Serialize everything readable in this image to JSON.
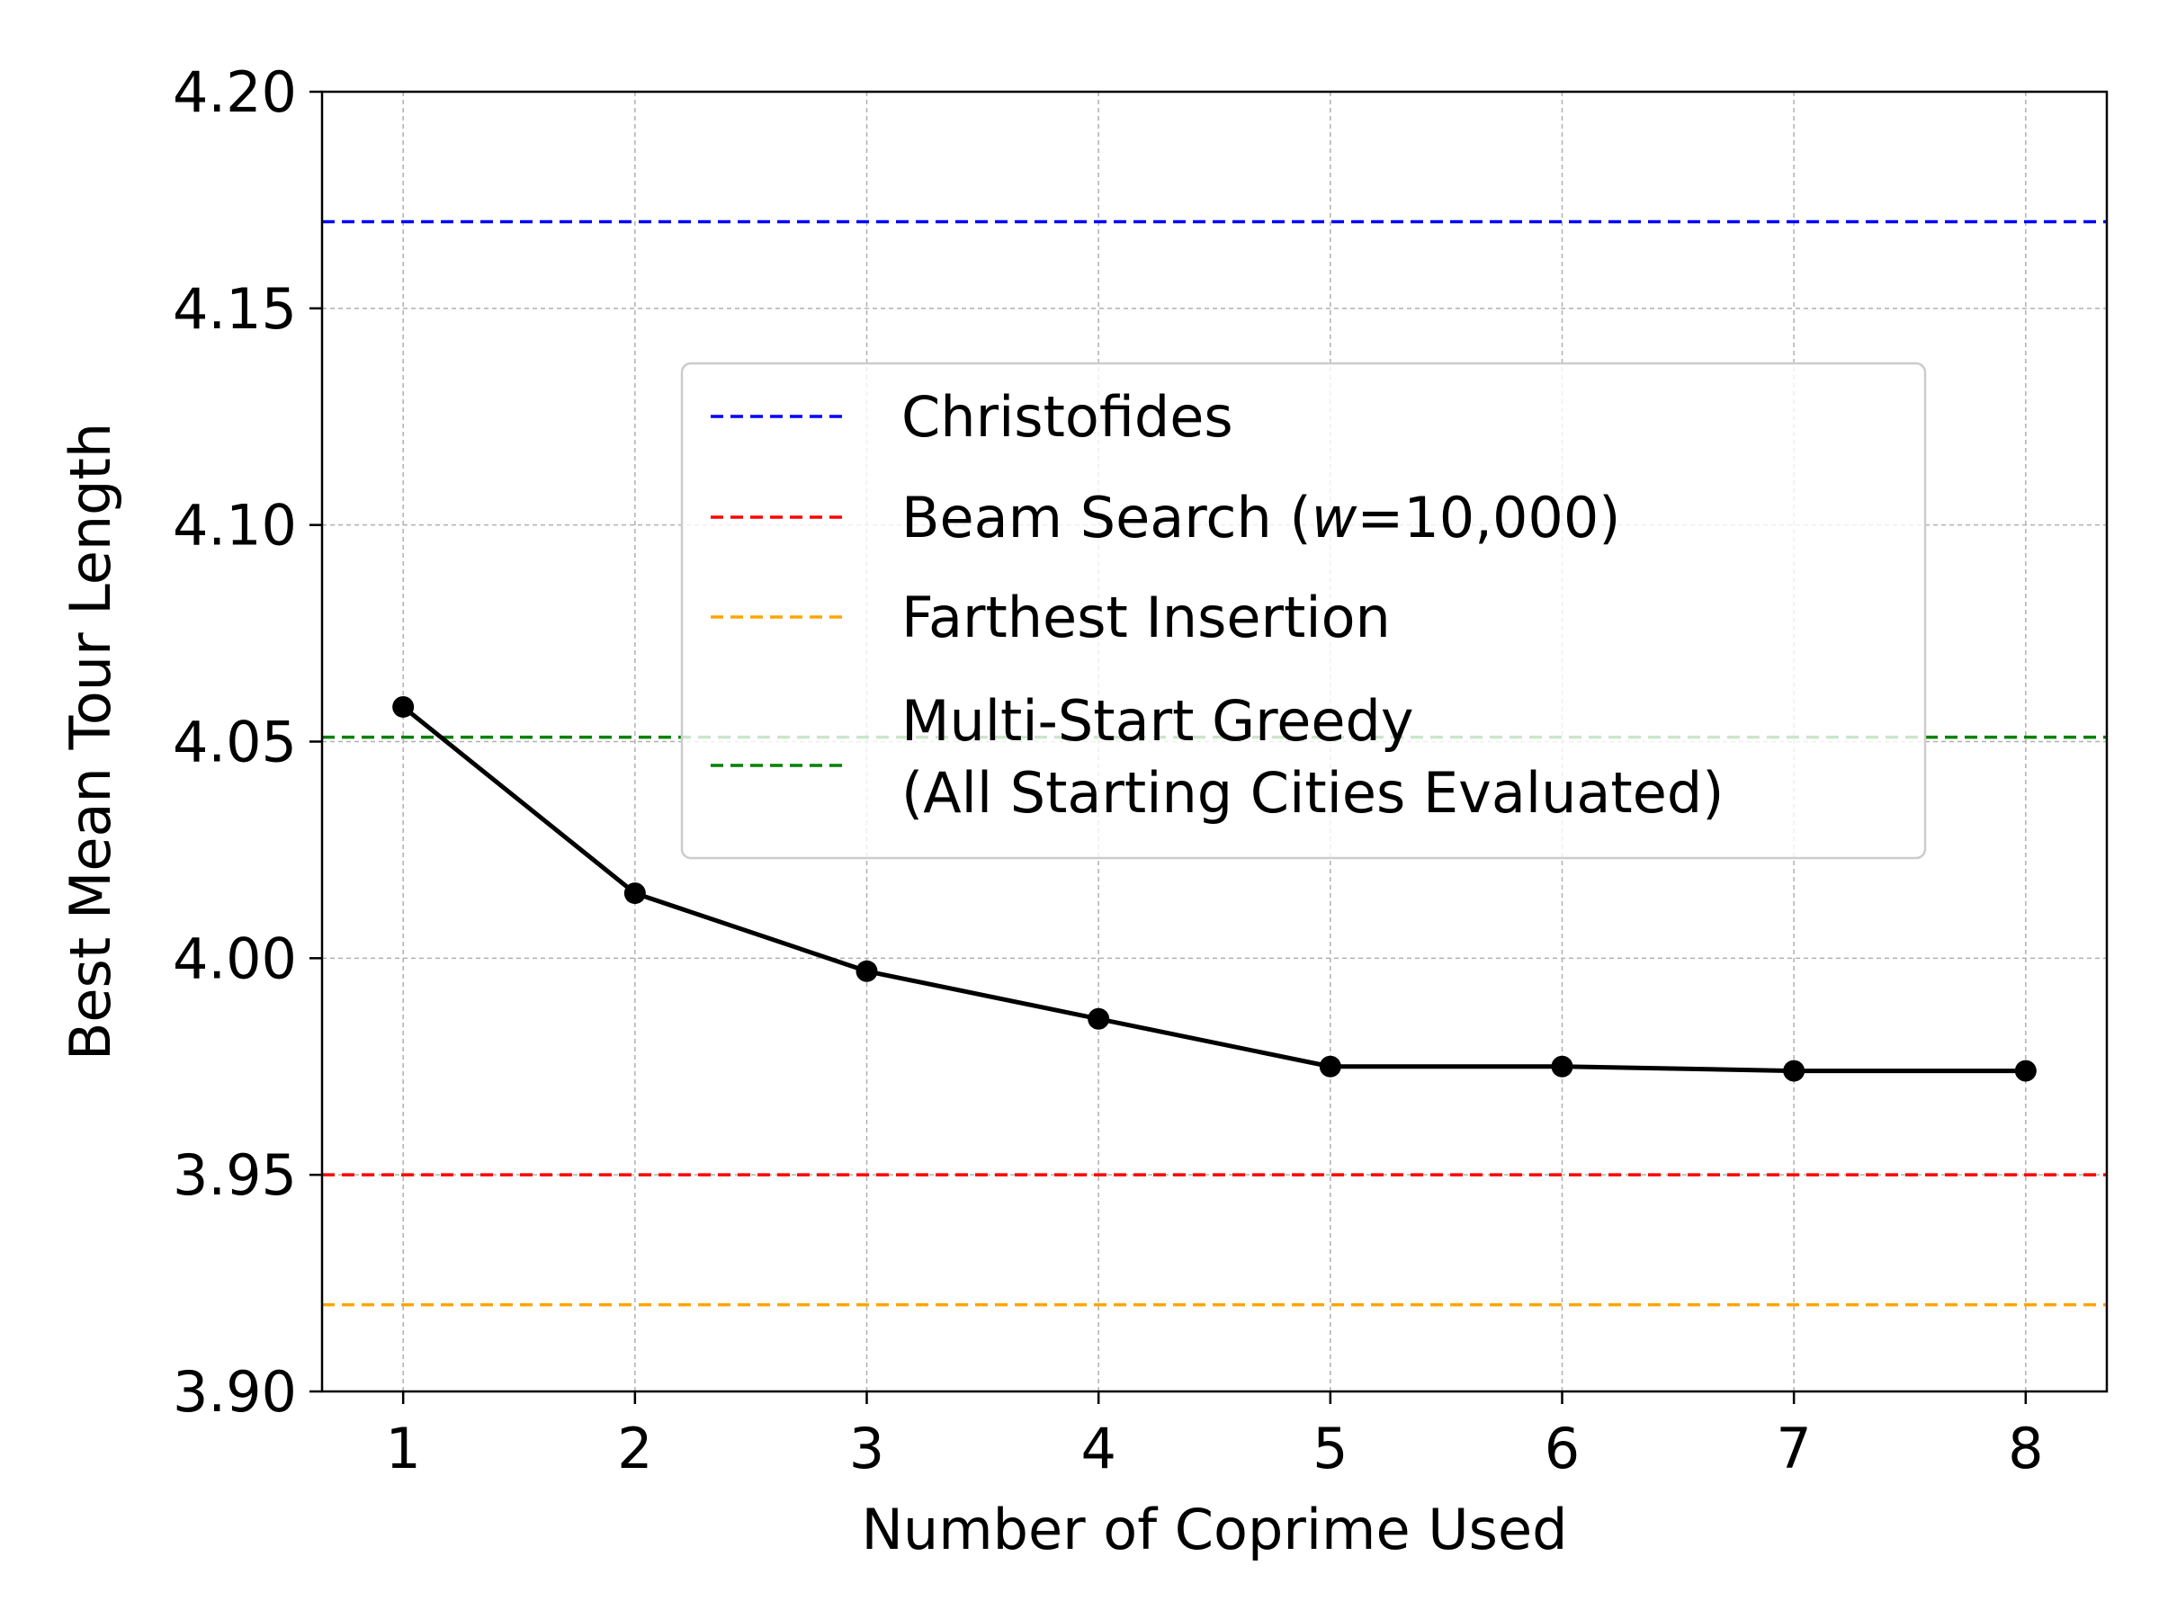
{
  "chart_data": {
    "type": "line",
    "xlabel": "Number of Coprime Used",
    "ylabel": "Best Mean Tour Length",
    "xlim": [
      0.65,
      8.35
    ],
    "ylim": [
      3.9,
      4.2
    ],
    "x_ticks": [
      1,
      2,
      3,
      4,
      5,
      6,
      7,
      8
    ],
    "y_ticks": [
      3.9,
      3.95,
      4.0,
      4.05,
      4.1,
      4.15,
      4.2
    ],
    "y_tick_labels": [
      "3.90",
      "3.95",
      "4.00",
      "4.05",
      "4.10",
      "4.15",
      "4.20"
    ],
    "grid": true,
    "legend_position": "center-right",
    "series": [
      {
        "x": [
          1,
          2,
          3,
          4,
          5,
          6,
          7,
          8
        ],
        "values": [
          4.058,
          4.015,
          3.997,
          3.986,
          3.975,
          3.975,
          3.974,
          3.974
        ],
        "color": "#000000",
        "marker": "circle"
      }
    ],
    "reference_lines": [
      {
        "name": "Christofides",
        "value": 4.17,
        "color": "#0000ff",
        "style": "dashed"
      },
      {
        "name_prefix": "Beam Search (",
        "name_var": "w",
        "name_suffix": "=10,000)",
        "value": 3.95,
        "color": "#ff0000",
        "style": "dashed"
      },
      {
        "name": "Farthest Insertion",
        "value": 3.92,
        "color": "#ffa500",
        "style": "dashed"
      },
      {
        "name_lines": [
          "Multi-Start Greedy",
          "(All Starting Cities Evaluated)"
        ],
        "value": 4.051,
        "color": "#008000",
        "style": "dashed"
      }
    ]
  }
}
